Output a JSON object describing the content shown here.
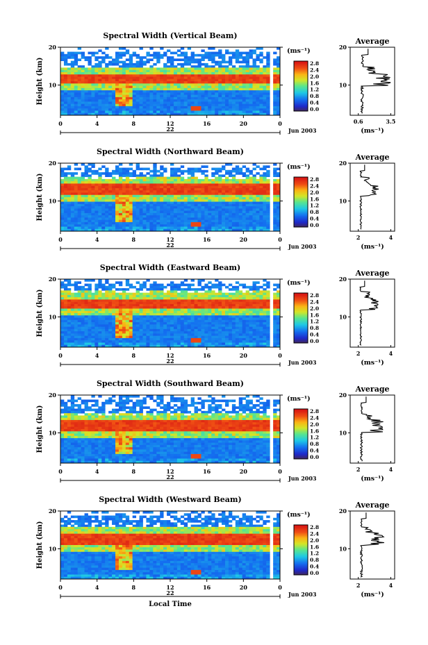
{
  "chart_data": [
    {
      "type": "heatmap",
      "title": "Spectral Width (Vertical Beam)",
      "ylabel": "Height (km)",
      "xticks": [
        "0",
        "4",
        "8",
        "12",
        "16",
        "20",
        "0"
      ],
      "xlim": [
        0,
        24
      ],
      "ylim": [
        2,
        20
      ],
      "yticks": [
        "10",
        "20"
      ],
      "day_label": "22",
      "date_label": "Jun 2003",
      "colorbar": {
        "unit": "(ms⁻¹)",
        "ticks": [
          "2.8",
          "2.4",
          "2.0",
          "1.6",
          "1.2",
          "0.8",
          "0.4",
          "0.0"
        ]
      },
      "average": {
        "title": "Average",
        "xlabel": "(ms⁻¹)",
        "xticks": [
          "0.6",
          "3.5"
        ],
        "yticks": [
          "10",
          "20"
        ],
        "peak_height_km": 11.5,
        "peak_value": 3.5
      }
    },
    {
      "type": "heatmap",
      "title": "Spectral Width (Northward Beam)",
      "ylabel": "Height (km)",
      "xticks": [
        "0",
        "4",
        "8",
        "12",
        "16",
        "20",
        "0"
      ],
      "xlim": [
        0,
        24
      ],
      "ylim": [
        2,
        20
      ],
      "yticks": [
        "10",
        "20"
      ],
      "day_label": "22",
      "date_label": "Jun 2003",
      "colorbar": {
        "unit": "(ms⁻¹)",
        "ticks": [
          "2.8",
          "2.4",
          "2.0",
          "1.6",
          "1.2",
          "0.8",
          "0.4",
          "0.0"
        ]
      },
      "average": {
        "title": "Average",
        "xlabel": "(ms⁻¹)",
        "xticks": [
          "2",
          "4"
        ],
        "yticks": [
          "10",
          "20"
        ],
        "peak_height_km": 13,
        "peak_value": 3.3
      }
    },
    {
      "type": "heatmap",
      "title": "Spectral Width (Eastward Beam)",
      "ylabel": "Height (km)",
      "xticks": [
        "0",
        "4",
        "8",
        "12",
        "16",
        "20",
        "0"
      ],
      "xlim": [
        0,
        24
      ],
      "ylim": [
        2,
        20
      ],
      "yticks": [
        "10",
        "20"
      ],
      "day_label": "22",
      "date_label": "Jun 2003",
      "colorbar": {
        "unit": "(ms⁻¹)",
        "ticks": [
          "2.8",
          "2.4",
          "2.0",
          "1.6",
          "1.2",
          "0.8",
          "0.4",
          "0.0"
        ]
      },
      "average": {
        "title": "Average",
        "xlabel": "(ms⁻¹)",
        "xticks": [
          "2",
          "4"
        ],
        "yticks": [
          "10",
          "20"
        ],
        "peak_height_km": 13.5,
        "peak_value": 3.3
      }
    },
    {
      "type": "heatmap",
      "title": "Spectral Width (Southward Beam)",
      "ylabel": "Height (km)",
      "xticks": [
        "0",
        "4",
        "8",
        "12",
        "16",
        "20",
        "0"
      ],
      "xlim": [
        0,
        24
      ],
      "ylim": [
        2,
        20
      ],
      "yticks": [
        "10",
        "20"
      ],
      "day_label": "22",
      "date_label": "Jun 2003",
      "colorbar": {
        "unit": "(ms⁻¹)",
        "ticks": [
          "2.8",
          "2.4",
          "2.0",
          "1.6",
          "1.2",
          "0.8",
          "0.4",
          "0.0"
        ]
      },
      "average": {
        "title": "Average",
        "xlabel": "(ms⁻¹)",
        "xticks": [
          "2",
          "4"
        ],
        "yticks": [
          "10",
          "20"
        ],
        "peak_height_km": 11.8,
        "peak_value": 3.6
      }
    },
    {
      "type": "heatmap",
      "title": "Spectral Width (Westward Beam)",
      "ylabel": "Height (km)",
      "xticks": [
        "0",
        "4",
        "8",
        "12",
        "16",
        "20",
        "0"
      ],
      "xlim": [
        0,
        24
      ],
      "ylim": [
        2,
        20
      ],
      "yticks": [
        "10",
        "20"
      ],
      "day_label": "22",
      "date_label": "Jun 2003",
      "xlabel": "Local Time",
      "colorbar": {
        "unit": "(ms⁻¹)",
        "ticks": [
          "2.8",
          "2.4",
          "2.0",
          "1.6",
          "1.2",
          "0.8",
          "0.4",
          "0.0"
        ]
      },
      "average": {
        "title": "Average",
        "xlabel": "(ms⁻¹)",
        "xticks": [
          "2",
          "4"
        ],
        "yticks": [
          "10",
          "20"
        ],
        "peak_height_km": 12.5,
        "peak_value": 3.6
      }
    }
  ]
}
